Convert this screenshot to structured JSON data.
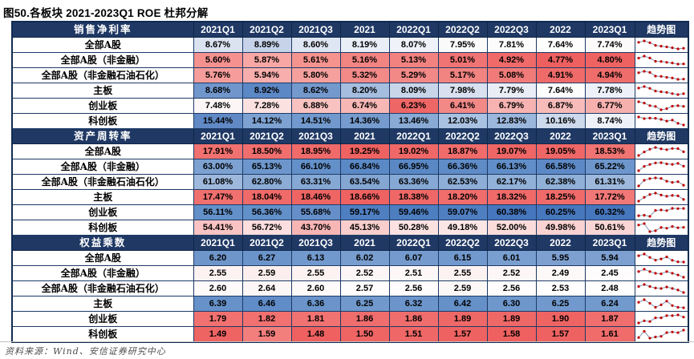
{
  "chart_data": {
    "type": "table",
    "title": "图50.各板块 2021-2023Q1 ROE 杜邦分解",
    "columns": [
      "2021Q1",
      "2021Q2",
      "2021Q3",
      "2021",
      "2022Q1",
      "2022Q2",
      "2022Q3",
      "2022",
      "2023Q1"
    ],
    "trend_column": "趋势图",
    "sections": [
      {
        "key": "net-profit-margin",
        "name": "销售净利率",
        "rows": [
          {
            "key": "all-a",
            "label": "全部A股",
            "values": [
              8.67,
              8.89,
              8.6,
              8.19,
              8.07,
              7.95,
              7.81,
              7.64,
              7.74
            ],
            "display": [
              "8.67%",
              "8.89%",
              "8.60%",
              "8.19%",
              "8.07%",
              "7.95%",
              "7.81%",
              "7.64%",
              "7.74%"
            ],
            "colors": [
              "#dbe3f1",
              "#c6d3e9",
              "#dfe6f3",
              "#e9eef7",
              "#eff2f9",
              "#fbfafb",
              "#fdfcfc",
              "#fefefe",
              "#fcfafa"
            ]
          },
          {
            "key": "all-a-ex-financials",
            "label": "全部A股（非金融）",
            "values": [
              5.6,
              5.87,
              5.61,
              5.16,
              5.13,
              5.01,
              4.92,
              4.77,
              4.8
            ],
            "display": [
              "5.60%",
              "5.87%",
              "5.61%",
              "5.16%",
              "5.13%",
              "5.01%",
              "4.92%",
              "4.77%",
              "4.80%"
            ],
            "colors": [
              "#f5918f",
              "#f8a7a5",
              "#f5938f",
              "#f28482",
              "#f28280",
              "#f07473",
              "#ef6a69",
              "#ee6060",
              "#ee6362"
            ]
          },
          {
            "key": "all-a-ex-fin-petro",
            "label": "全部A股（非金融石油石化）",
            "values": [
              5.76,
              5.94,
              5.8,
              5.32,
              5.29,
              5.17,
              5.08,
              4.91,
              4.94
            ],
            "display": [
              "5.76%",
              "5.94%",
              "5.80%",
              "5.32%",
              "5.29%",
              "5.17%",
              "5.08%",
              "4.91%",
              "4.94%"
            ],
            "colors": [
              "#f69d9b",
              "#f8aeac",
              "#f6a09e",
              "#f28a88",
              "#f28987",
              "#f18381",
              "#f07b79",
              "#ef6b69",
              "#ef6d6b"
            ]
          },
          {
            "key": "main-board",
            "label": "主板",
            "values": [
              8.68,
              8.92,
              8.62,
              8.2,
              8.09,
              7.98,
              7.79,
              7.64,
              7.78
            ],
            "display": [
              "8.68%",
              "8.92%",
              "8.62%",
              "8.20%",
              "8.09%",
              "7.98%",
              "7.79%",
              "7.64%",
              "7.78%"
            ],
            "colors": [
              "#7096cc",
              "#5c88c5",
              "#7499cd",
              "#a5bddf",
              "#c9d6ea",
              "#d9e1f0",
              "#e9edf6",
              "#fdfdfe",
              "#edf0f8"
            ]
          },
          {
            "key": "chinext",
            "label": "创业板",
            "values": [
              7.48,
              7.28,
              6.88,
              6.74,
              6.23,
              6.41,
              6.79,
              6.87,
              6.77
            ],
            "display": [
              "7.48%",
              "7.28%",
              "6.88%",
              "6.74%",
              "6.23%",
              "6.41%",
              "6.79%",
              "6.87%",
              "6.77%"
            ],
            "colors": [
              "#fdf6f6",
              "#fbe2e1",
              "#f8c2c0",
              "#f7b7b5",
              "#ee6766",
              "#f28987",
              "#f6b3b1",
              "#f7bcba",
              "#f6b1af"
            ]
          },
          {
            "key": "star-market",
            "label": "科创板",
            "values": [
              15.44,
              14.12,
              14.51,
              14.36,
              13.46,
              12.03,
              12.83,
              10.16,
              8.74
            ],
            "display": [
              "15.44%",
              "14.12%",
              "14.51%",
              "14.36%",
              "13.46%",
              "12.03%",
              "12.83%",
              "10.16%",
              "8.74%"
            ],
            "colors": [
              "#6089c5",
              "#7da2d2",
              "#7299cd",
              "#769bce",
              "#88aad5",
              "#aac2e2",
              "#9cb7dc",
              "#cdd9ec",
              "#eef1f8"
            ]
          }
        ]
      },
      {
        "key": "asset-turnover",
        "name": "资产周转率",
        "rows": [
          {
            "key": "all-a",
            "label": "全部A股",
            "values": [
              17.91,
              18.5,
              18.95,
              19.25,
              19.02,
              18.87,
              19.07,
              19.05,
              18.53
            ],
            "display": [
              "17.91%",
              "18.50%",
              "18.95%",
              "19.25%",
              "19.02%",
              "18.87%",
              "19.07%",
              "19.05%",
              "18.53%"
            ],
            "colors": [
              "#f0716f",
              "#f06e6d",
              "#ef6a69",
              "#ee6261",
              "#ef6867",
              "#f06c6b",
              "#ee6665",
              "#ee6766",
              "#f07472"
            ]
          },
          {
            "key": "all-a-ex-financials",
            "label": "全部A股（非金融）",
            "values": [
              63.0,
              65.13,
              66.1,
              66.84,
              66.95,
              66.36,
              66.13,
              66.58,
              65.22
            ],
            "display": [
              "63.00%",
              "65.13%",
              "66.10%",
              "66.84%",
              "66.95%",
              "66.36%",
              "66.13%",
              "66.58%",
              "65.22%"
            ],
            "colors": [
              "#7da2d2",
              "#6d97cc",
              "#6390c9",
              "#5b89c6",
              "#5a88c5",
              "#5f8cc7",
              "#618ec8",
              "#5d8ac6",
              "#6d97cc"
            ]
          },
          {
            "key": "all-a-ex-fin-petro",
            "label": "全部A股（非金融石油石化）",
            "values": [
              61.08,
              62.8,
              63.31,
              63.54,
              63.36,
              62.53,
              62.17,
              62.38,
              61.31
            ],
            "display": [
              "61.08%",
              "62.80%",
              "63.31%",
              "63.54%",
              "63.36%",
              "62.53%",
              "62.17%",
              "62.38%",
              "61.31%"
            ],
            "colors": [
              "#9fb9dd",
              "#8cacd6",
              "#86a8d4",
              "#84a6d3",
              "#86a8d4",
              "#8eaed8",
              "#92b1d9",
              "#90b0d8",
              "#9db8dc"
            ]
          },
          {
            "key": "main-board",
            "label": "主板",
            "values": [
              17.47,
              18.04,
              18.46,
              18.66,
              18.38,
              18.2,
              18.32,
              18.25,
              17.72
            ],
            "display": [
              "17.47%",
              "18.04%",
              "18.46%",
              "18.66%",
              "18.38%",
              "18.20%",
              "18.32%",
              "18.25%",
              "17.72%"
            ],
            "colors": [
              "#f0706f",
              "#ef6a69",
              "#ee6564",
              "#ee6261",
              "#ef6867",
              "#f06d6c",
              "#ef6a69",
              "#ef6b6a",
              "#f17877"
            ]
          },
          {
            "key": "chinext",
            "label": "创业板",
            "values": [
              56.11,
              56.36,
              55.68,
              59.17,
              59.46,
              59.07,
              60.38,
              60.25,
              60.32
            ],
            "display": [
              "56.11%",
              "56.36%",
              "55.68%",
              "59.17%",
              "59.46%",
              "59.07%",
              "60.38%",
              "60.25%",
              "60.32%"
            ],
            "colors": [
              "#6390c9",
              "#6290c8",
              "#668fc9",
              "#4f7fc1",
              "#4d7ec0",
              "#507fc1",
              "#4676bd",
              "#4777bd",
              "#4676bd"
            ]
          },
          {
            "key": "star-market",
            "label": "科创板",
            "values": [
              54.41,
              56.72,
              43.7,
              45.13,
              50.28,
              49.18,
              52.0,
              49.98,
              50.61
            ],
            "display": [
              "54.41%",
              "56.72%",
              "43.70%",
              "45.13%",
              "50.28%",
              "49.18%",
              "52.00%",
              "49.98%",
              "50.61%"
            ],
            "colors": [
              "#f8c3c2",
              "#fbdedd",
              "#f7b5b4",
              "#f9cecd",
              "#fbe2e1",
              "#fce6e5",
              "#fbdcdb",
              "#f9d2d1",
              "#f9d6d5"
            ]
          }
        ]
      },
      {
        "key": "equity-multiplier",
        "name": "权益乘数",
        "rows": [
          {
            "key": "all-a",
            "label": "全部A股",
            "values": [
              6.2,
              6.27,
              6.13,
              6.02,
              6.07,
              6.15,
              6.01,
              5.95,
              5.94
            ],
            "display": [
              "6.20",
              "6.27",
              "6.13",
              "6.02",
              "6.07",
              "6.15",
              "6.01",
              "5.95",
              "5.94"
            ],
            "colors": [
              "#6e96cb",
              "#6b94ca",
              "#7299cd",
              "#789dcf",
              "#759bce",
              "#7199cd",
              "#799ed0",
              "#7da0d1",
              "#7da0d1"
            ]
          },
          {
            "key": "all-a-ex-financials",
            "label": "全部A股（非金融）",
            "values": [
              2.55,
              2.59,
              2.55,
              2.52,
              2.51,
              2.55,
              2.52,
              2.49,
              2.45
            ],
            "display": [
              "2.55",
              "2.59",
              "2.55",
              "2.52",
              "2.51",
              "2.55",
              "2.52",
              "2.49",
              "2.45"
            ],
            "colors": [
              "#fdf2f2",
              "#fceeee",
              "#fdf2f2",
              "#fdf6f6",
              "#fdf7f7",
              "#fdf2f2",
              "#fdf6f6",
              "#fef9f9",
              "#fefcfc"
            ]
          },
          {
            "key": "all-a-ex-fin-petro",
            "label": "全部A股（非金融石油石化）",
            "values": [
              2.6,
              2.64,
              2.6,
              2.57,
              2.56,
              2.59,
              2.56,
              2.53,
              2.48
            ],
            "display": [
              "2.60",
              "2.64",
              "2.60",
              "2.57",
              "2.56",
              "2.59",
              "2.56",
              "2.53",
              "2.48"
            ],
            "colors": [
              "#fefafa",
              "#fdf6f6",
              "#fefafa",
              "#fefcfc",
              "#fefcfc",
              "#fdf8f8",
              "#fefcfc",
              "#fefefe",
              "#ffffff"
            ]
          },
          {
            "key": "main-board",
            "label": "主板",
            "values": [
              6.39,
              6.46,
              6.36,
              6.25,
              6.32,
              6.42,
              6.3,
              6.25,
              6.24
            ],
            "display": [
              "6.39",
              "6.46",
              "6.36",
              "6.25",
              "6.32",
              "6.42",
              "6.30",
              "6.25",
              "6.24"
            ],
            "colors": [
              "#6691c9",
              "#608cc7",
              "#6a94ca",
              "#7199cd",
              "#6c95cb",
              "#6590c8",
              "#6e97cc",
              "#7199cd",
              "#729acd"
            ]
          },
          {
            "key": "chinext",
            "label": "创业板",
            "values": [
              1.79,
              1.82,
              1.81,
              1.86,
              1.86,
              1.89,
              1.89,
              1.9,
              1.87
            ],
            "display": [
              "1.79",
              "1.82",
              "1.81",
              "1.86",
              "1.86",
              "1.89",
              "1.89",
              "1.90",
              "1.87"
            ],
            "colors": [
              "#f0716f",
              "#f07170",
              "#f07372",
              "#ef6e6d",
              "#ef6e6d",
              "#ee6867",
              "#ee6867",
              "#ee6463",
              "#f06f6e"
            ]
          },
          {
            "key": "star-market",
            "label": "科创板",
            "values": [
              1.49,
              1.59,
              1.48,
              1.5,
              1.51,
              1.57,
              1.58,
              1.57,
              1.61
            ],
            "display": [
              "1.49",
              "1.59",
              "1.48",
              "1.50",
              "1.51",
              "1.57",
              "1.58",
              "1.57",
              "1.61"
            ],
            "colors": [
              "#ee6463",
              "#f37f7d",
              "#ee6160",
              "#ee6564",
              "#ef6766",
              "#ee6362",
              "#ee6160",
              "#ee6362",
              "#ef6c6b"
            ]
          }
        ]
      }
    ]
  },
  "footer": {
    "source": "资料来源：Wind、安信证券研究中心"
  },
  "style": {
    "header_bg": "#1F3864",
    "header_text": "#FFFFFF",
    "border": "#1C3A66",
    "sparkline_dot": "#C00000",
    "sparkline_line": "#8496B0",
    "scale_high": "#4676BD",
    "scale_low": "#EE6060"
  }
}
